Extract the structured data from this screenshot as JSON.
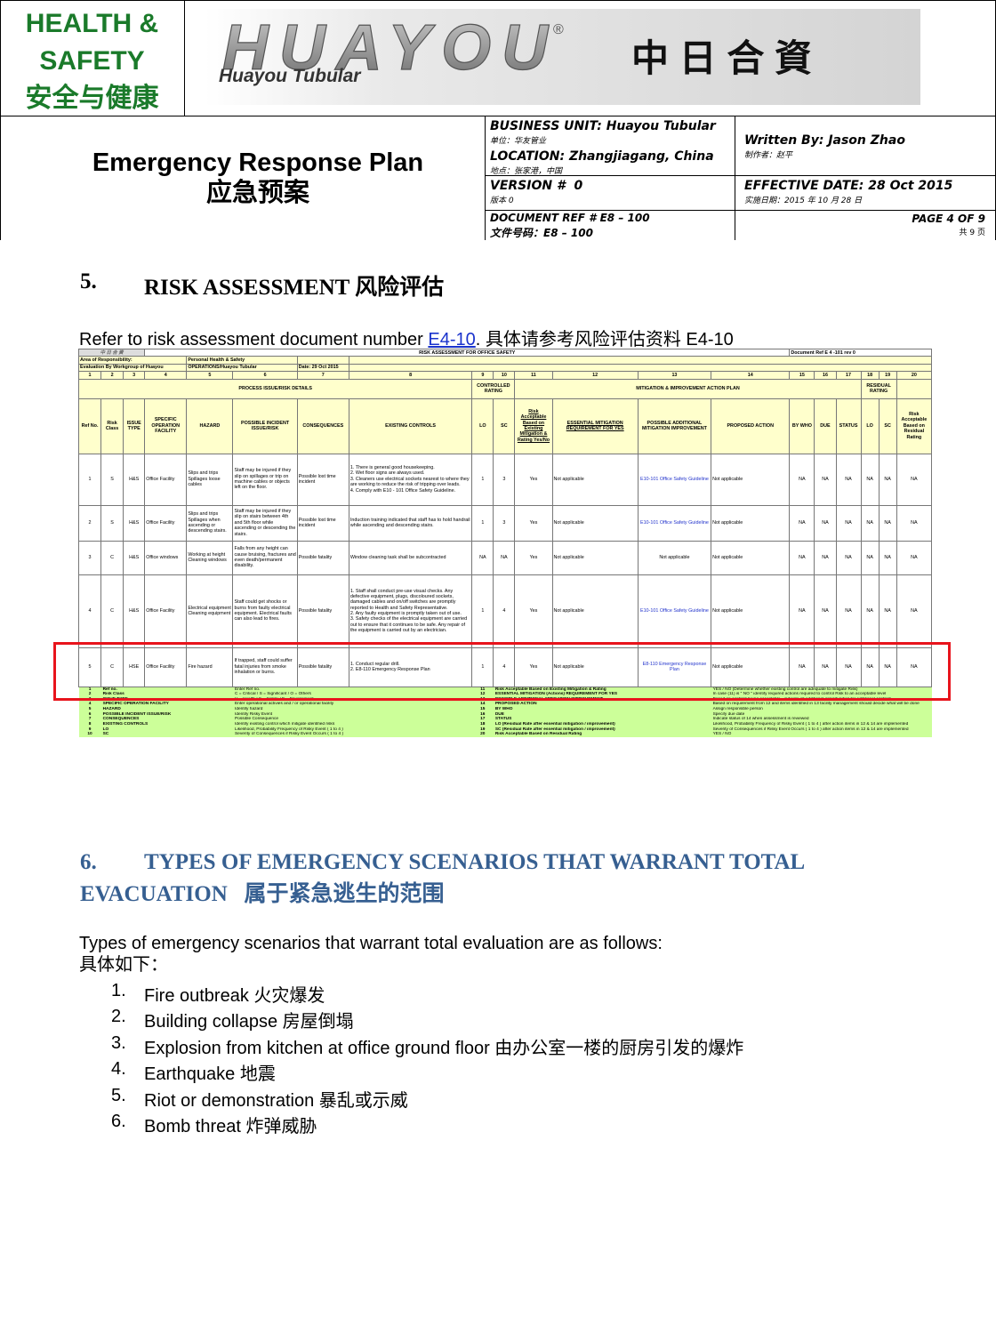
{
  "header": {
    "hs_lines": [
      "HEALTH &",
      "SAFETY",
      "安全与健康"
    ],
    "logo_brand": "HUAYOU",
    "logo_registered": "®",
    "logo_name": "Huayou Tubular",
    "jv_title": "中 日 合 資",
    "doc_title": "Emergency Response Plan",
    "doc_title_cn": "应急预案",
    "business_unit": "BUSINESS UNIT: Huayou Tubular",
    "business_unit_cn": "单位：华友管业",
    "location": "LOCATION: Zhangjiagang, China",
    "location_cn": "地点：张家港，中国",
    "written_by": "Written By: Jason Zhao",
    "written_by_cn": "制作者：赵平",
    "version": "VERSION #  0",
    "version_cn": "版本 0",
    "effective_date": "EFFECTIVE DATE: 28 Oct 2015",
    "effective_date_cn": "实施日期：2015 年 10 月 28 日",
    "doc_ref": "DOCUMENT REF # E8 – 100",
    "doc_ref_cn": "文件号码：E8 – 100",
    "page": "PAGE 4 OF 9",
    "page_cn": "共 9 页"
  },
  "section5": {
    "number": "5.",
    "heading": "RISK ASSESSMENT 风险评估",
    "ref_text": "Refer to risk assessment document number ",
    "ref_link": "E4-10",
    "ref_rest": ". 具体请参考风险评估资料 E4-10"
  },
  "risk_table": {
    "logo_cn": "中 日 合 資",
    "title": "RISK ASSESSMENT FOR OFFICE SAFETY",
    "doc_ref": "Document Ref E 4 -101 rev 0",
    "meta": [
      [
        "Area of Responsibility:",
        "Personal Health & Safety"
      ],
      [
        "Evaluation By Workgroup of Huayou",
        "OPERATIONS/Huayou Tubular",
        "Date: 29 Oct 2015"
      ]
    ],
    "column_numbers": [
      1,
      2,
      3,
      4,
      5,
      6,
      7,
      8,
      9,
      10,
      11,
      12,
      13,
      14,
      15,
      16,
      17,
      18,
      19,
      20
    ],
    "groups": [
      "PROCESS ISSUE/RISK DETAILS",
      "CONTROLLED RATING",
      "MITIGATION & IMPROVEMENT ACTION PLAN",
      "RESIDUAL RATING"
    ],
    "columns": [
      "Ref No.",
      "Risk Class",
      "ISSUE TYPE",
      "SPECIFIC OPERATION FACILITY",
      "HAZARD",
      "POSSIBLE INCIDENT ISSUE/RISK",
      "CONSEQUENCES",
      "EXISTING CONTROLS",
      "LO",
      "SC",
      "Risk Acceptable Based on Existing Mitigation & Rating Yes/No",
      "ESSENTIAL MITIGATION REQUIREMENT FOR YES",
      "POSSIBLE ADDITIONAL MITIGATION IMPROVEMENT",
      "PROPOSED  ACTION",
      "BY WHO",
      "DUE",
      "STATUS",
      "LO",
      "SC",
      "Risk Acceptable Based on Residual Rating"
    ],
    "rows": [
      [
        1,
        "S",
        "H&S",
        "Office Facility",
        "Slips and trips\nSpillages loose cables",
        "Staff may be injured if they slip on spillages or trip on machine cables or objects left on the floor.",
        "Possible lost time incident",
        "1. There is general good housekeeping.\n2. Wet floor signs are always used.\n3. Cleaners use electrical sockets nearest to where they are working to reduce the risk of tripping over leads.\n4. Comply with E10 - 101 Office Safety Guideline.",
        1,
        3,
        "Yes",
        "Not applicable",
        "E10-101 Office Safety Guideline",
        "Not applicable",
        "NA",
        "NA",
        "NA",
        "NA",
        "NA",
        "NA"
      ],
      [
        2,
        "S",
        "H&S",
        "Office Facility",
        "Slips and trips\nSpillages when ascending or descending stairs.",
        "Staff may be injured if they slip on stairs between 4th and 5th floor while ascending or descending the stairs.",
        "Possible lost time incident",
        "Induction training indicated that staff has to hold handrail while ascending and descending stairs.",
        1,
        3,
        "Yes",
        "Not applicable",
        "E10-101 Office Safety Guideline",
        "Not applicable",
        "NA",
        "NA",
        "NA",
        "NA",
        "NA",
        "NA"
      ],
      [
        3,
        "C",
        "H&S",
        "Office windows",
        "Working at height\nCleaning windows",
        "Falls from any height can cause bruising, fractures and even death/permanent disability.",
        "Possible fatality",
        "Window cleaning task shall be subcontracted",
        "NA",
        "NA",
        "Yes",
        "Not applicable",
        "Not applicable",
        "Not applicable",
        "NA",
        "NA",
        "NA",
        "NA",
        "NA",
        "NA"
      ],
      [
        4,
        "C",
        "H&S",
        "Office Facility",
        "Electrical equipment\nCleaning equipment",
        "Staff could get shocks or burns from faulty electrical equipment. Electrical faults can also lead to fires.",
        "Possible fatality",
        "1. Staff shall conduct pre-use visual checks. Any defective equipment, plugs, discoloured sockets, damaged cables and on/off switches are promptly reported to Health and Safety Representative.\n2. Any faulty equipment is promptly taken out of use.\n3. Safety checks of the electrical equipment are carried out to ensure that it continues to be safe. Any repair of the equipment is carried out by an electrician.",
        1,
        4,
        "Yes",
        "Not applicable",
        "E10-101 Office Safety Guideline",
        "Not applicable",
        "NA",
        "NA",
        "NA",
        "NA",
        "NA",
        "NA"
      ],
      [
        5,
        "C",
        "HSE",
        "Office Facility",
        "Fire hazard",
        "If trapped, staff could suffer fatal injuries from smoke inhalation or burns.",
        "Possible fatality",
        "1. Conduct regular drill.\n2. E8-110 Emergency Response Plan",
        1,
        4,
        "Yes",
        "Not applicable",
        "E8-110 Emergency Response Plan",
        "Not applicable",
        "NA",
        "NA",
        "NA",
        "NA",
        "NA",
        "NA"
      ]
    ],
    "legend": [
      [
        1,
        "Ref no.",
        "Enter Ref no.",
        11,
        "Risk Acceptable Based on Existing Mitigation & Rating",
        "YES / NO (Determine whether existing control are adequate to mitigate Risk)"
      ],
      [
        2,
        "Risk Class",
        "C = Critical / S = Significant / O = Others",
        12,
        "ESSENTIAL MITIGATION (Actions) REQUIREMENT FOR YES",
        "In case (11) is \" NO \" identify required actions required to control Risk to an acceptable level"
      ],
      [
        3,
        "ISSUE TYPE",
        "H = Health / S = Safety / E = Environment",
        13,
        "POSSIBLE ADDITIONAL MITIGATION IMPROVEMENT",
        "Based on controls being acceptable - indicate all additional opportunities for additional controls"
      ],
      [
        4,
        "SPECIFIC OPERATION  FACILITY",
        "Enter operational activies and / or operational facility",
        14,
        "PROPOSED  ACTION",
        "Based on requirement from 12 and  items identified in 13 facility management should decide what will be done"
      ],
      [
        5,
        "HAZARD",
        "Identify hazard",
        15,
        "BY WHO",
        "Assign responsible person"
      ],
      [
        6,
        "POSSIBLE INCIDENT ISSUE/RISK",
        "Identify Risky Event",
        16,
        "DUE",
        "Specify due date"
      ],
      [
        7,
        "CONSEQUENCES",
        "Possible Consequence",
        17,
        "STATUS",
        "Indicate status of 14 when assessment is reviewed"
      ],
      [
        8,
        "EXISTING CONTROLS",
        "Identify existing control which mitigate identified risks",
        18,
        "LO (Residual Rate after essential mitigation / improvement)",
        "Likelihood, Probability Frequency of Risky Event ( 1  to 4 ) after action items in 12 & 14 are implemented"
      ],
      [
        9,
        "LO",
        "Likelihood, Probability Frequency of Risky Event ( 1 to 4 )",
        19,
        "SC (Residual Rate after essential mitigation / improvement)",
        "Severity of Consequences if Risky Event Occurs  ( 1 to 4 ) after action items in 12 & 14 are implemented"
      ],
      [
        10,
        "SC",
        "Severity of Consequences if Risky Event Occurs  ( 1 to 4 )",
        20,
        "Risk Acceptable Based on Residual Rating",
        "YES / NO"
      ]
    ]
  },
  "section6": {
    "number": "6.",
    "heading": "TYPES OF EMERGENCY SCENARIOS THAT WARRANT TOTAL EVACUATION   属于紧急逃生的范围",
    "intro": "Types of emergency scenarios that warrant total evaluation are as follows:",
    "intro_cn": "具体如下：",
    "items": [
      "Fire outbreak 火灾爆发",
      "Building collapse 房屋倒塌",
      "Explosion from kitchen at office ground floor 由办公室一楼的厨房引发的爆炸",
      "Earthquake 地震",
      "Riot or demonstration 暴乱或示威",
      "Bomb threat 炸弹威胁"
    ],
    "item_numbers": [
      "1.",
      "2.",
      "3.",
      "4.",
      "5.",
      "6."
    ]
  }
}
